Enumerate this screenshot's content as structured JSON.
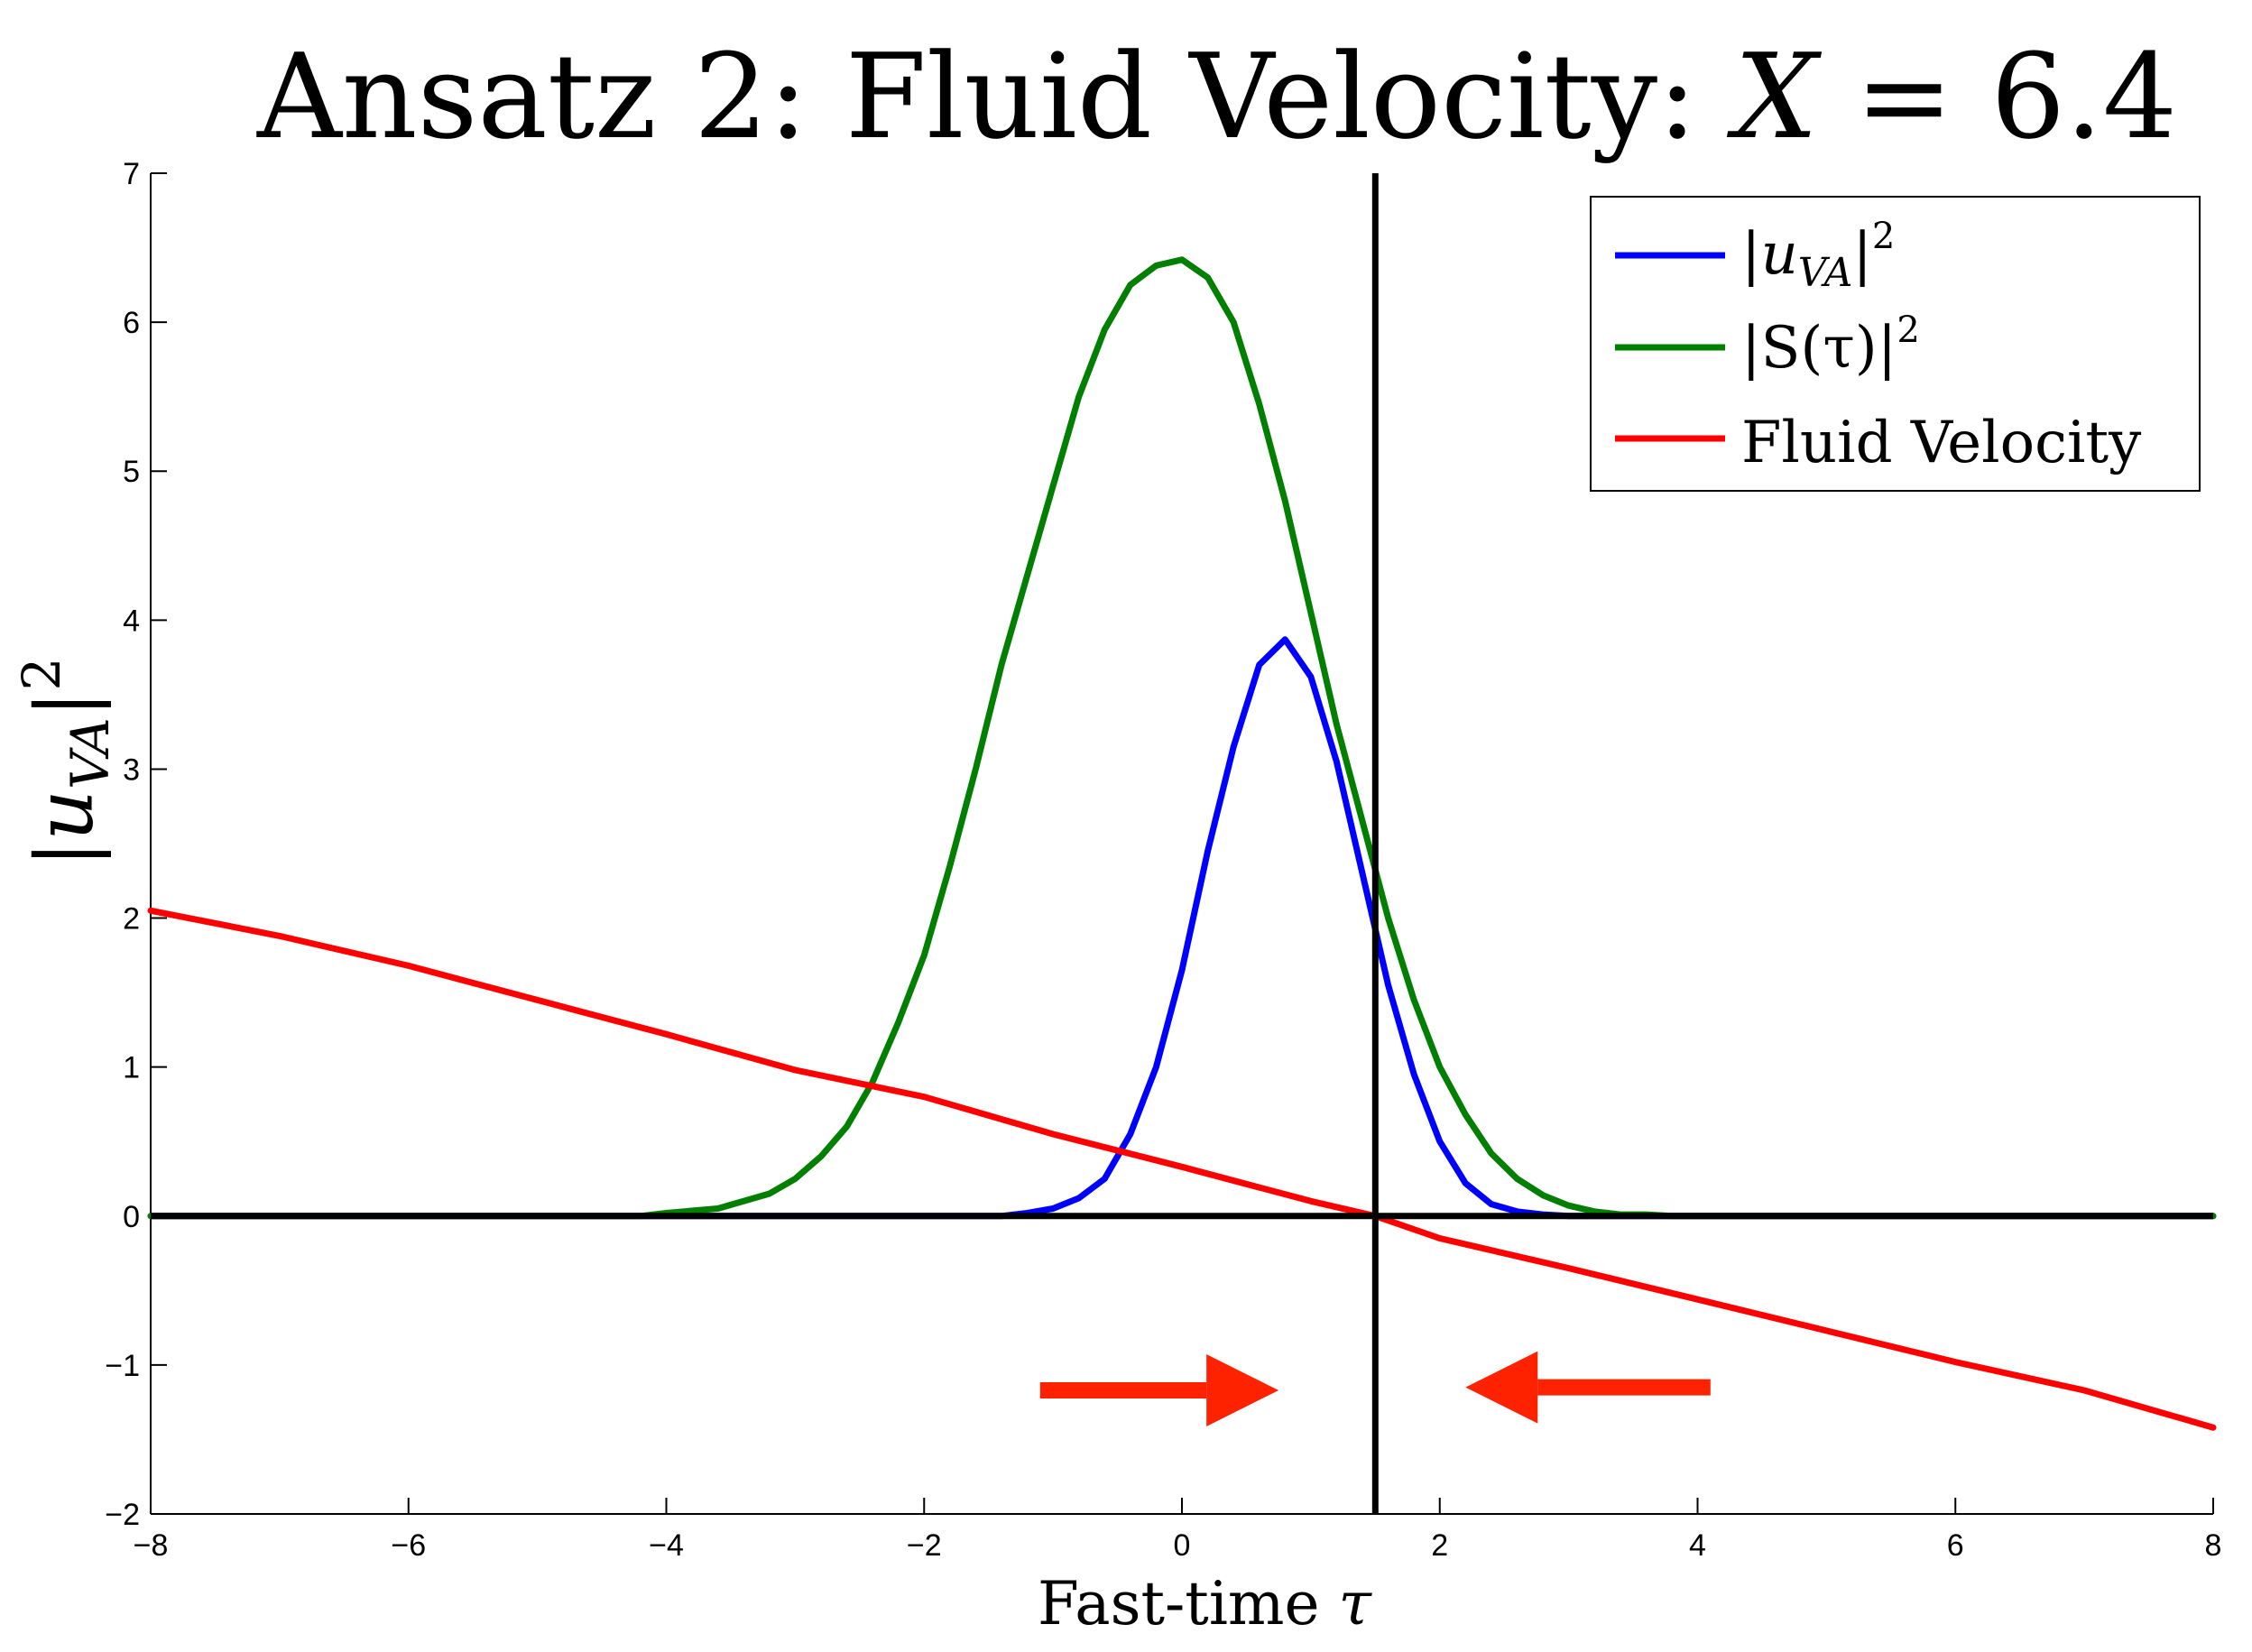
{
  "chart_data": {
    "type": "line",
    "title": "Ansatz 2: Fluid Velocity: X = 6.4",
    "title_parts": {
      "prefix": "Ansatz 2: Fluid Velocity: ",
      "var": "X",
      "eq": " = 6.4"
    },
    "xlabel": "Fast-time τ",
    "xlabel_parts": {
      "text": "Fast-time ",
      "var": "τ"
    },
    "ylabel": "|u_VA|^2",
    "xlim": [
      -8,
      8
    ],
    "ylim": [
      -2,
      7
    ],
    "xticks": [
      "−8",
      "−6",
      "−4",
      "−2",
      "0",
      "2",
      "4",
      "6",
      "8"
    ],
    "yticks": [
      "−2",
      "−1",
      "0",
      "1",
      "2",
      "3",
      "4",
      "5",
      "6",
      "7"
    ],
    "grid": false,
    "legend_position": "top-right",
    "reference_lines": {
      "vertical_x": 1.5,
      "horizontal_y": 0
    },
    "series": [
      {
        "name": "|u_VA|^2",
        "label_parts": {
          "bar": "|",
          "var": "u",
          "sub": "VA",
          "sup": "2"
        },
        "color": "#0000ff",
        "x": [
          -8,
          -1.4,
          -1.2,
          -1.0,
          -0.8,
          -0.6,
          -0.4,
          -0.2,
          0.0,
          0.2,
          0.4,
          0.6,
          0.8,
          1.0,
          1.2,
          1.4,
          1.6,
          1.8,
          2.0,
          2.2,
          2.4,
          2.6,
          2.8,
          3.0,
          8
        ],
        "y": [
          0,
          0,
          0.02,
          0.05,
          0.12,
          0.25,
          0.55,
          1.0,
          1.65,
          2.45,
          3.15,
          3.7,
          3.87,
          3.62,
          3.05,
          2.3,
          1.55,
          0.95,
          0.5,
          0.22,
          0.08,
          0.03,
          0.01,
          0,
          0
        ]
      },
      {
        "name": "|S(τ)|^2",
        "label_parts": {
          "text": "|S(τ)|",
          "sup": "2"
        },
        "color": "#007f00",
        "x": [
          -8,
          -4.2,
          -4.0,
          -3.6,
          -3.2,
          -3.0,
          -2.8,
          -2.6,
          -2.4,
          -2.2,
          -2.0,
          -1.8,
          -1.6,
          -1.4,
          -1.2,
          -1.0,
          -0.8,
          -0.6,
          -0.4,
          -0.2,
          0.0,
          0.2,
          0.4,
          0.6,
          0.8,
          1.0,
          1.2,
          1.4,
          1.6,
          1.8,
          2.0,
          2.2,
          2.4,
          2.6,
          2.8,
          3.0,
          3.2,
          3.4,
          3.6,
          3.8,
          4.0,
          4.2,
          8
        ],
        "y": [
          0,
          0,
          0.02,
          0.05,
          0.15,
          0.25,
          0.4,
          0.6,
          0.9,
          1.3,
          1.75,
          2.35,
          3.0,
          3.7,
          4.3,
          4.9,
          5.5,
          5.95,
          6.25,
          6.38,
          6.42,
          6.3,
          6.0,
          5.45,
          4.8,
          4.05,
          3.3,
          2.65,
          2.0,
          1.45,
          1.0,
          0.68,
          0.42,
          0.25,
          0.14,
          0.07,
          0.03,
          0.01,
          0.01,
          0,
          0,
          0,
          0
        ]
      },
      {
        "name": "Fluid Velocity",
        "color": "#ff0000",
        "x": [
          -8,
          -7,
          -6,
          -5,
          -4,
          -3,
          -2,
          -1,
          0,
          1,
          1.5,
          2,
          3,
          4,
          5,
          6,
          7,
          8
        ],
        "y": [
          2.05,
          1.88,
          1.68,
          1.45,
          1.22,
          0.98,
          0.8,
          0.55,
          0.33,
          0.1,
          0.0,
          -0.15,
          -0.35,
          -0.56,
          -0.77,
          -0.98,
          -1.17,
          -1.42
        ]
      }
    ],
    "annotations": [
      {
        "type": "arrow",
        "direction": "right",
        "color": "#ff2200",
        "x_from": -1.1,
        "x_to": 0.75,
        "y": -1.17
      },
      {
        "type": "arrow",
        "direction": "left",
        "color": "#ff2200",
        "x_from": 4.1,
        "x_to": 2.2,
        "y": -1.15
      }
    ]
  }
}
